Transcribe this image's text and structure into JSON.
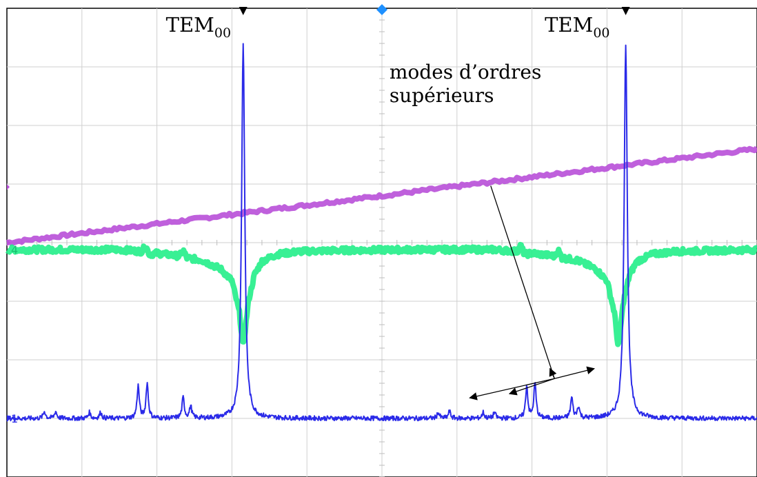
{
  "chart_data": {
    "type": "line",
    "xlim": [
      0,
      10
    ],
    "ylim": [
      0,
      8
    ],
    "grid": true,
    "grid_divisions": {
      "x": 10,
      "y": 8
    },
    "colors": {
      "ramp": "#b84fd8",
      "reflection": "#22ee88",
      "transmission": "#2a2ae8",
      "marker_trigger": "#1e90ff",
      "marker_peak": "#000000"
    },
    "channel_labels": {
      "transmission": "1",
      "reflection": "4"
    },
    "series": [
      {
        "channel": "ramp",
        "color": "#b84fd8",
        "x": [
          0,
          10
        ],
        "y": [
          4.0,
          5.6
        ]
      },
      {
        "channel": "reflection",
        "color": "#22ee88",
        "x": [
          0,
          1.5,
          1.8,
          1.85,
          1.9,
          2.0,
          2.3,
          2.35,
          2.4,
          2.6,
          2.85,
          3.0,
          3.1,
          3.15,
          3.22,
          3.3,
          3.4,
          3.6,
          3.9,
          4.5,
          5.5,
          6.5,
          6.8,
          6.85,
          6.9,
          7.0,
          7.3,
          7.35,
          7.4,
          7.6,
          7.85,
          8.0,
          8.1,
          8.15,
          8.22,
          8.3,
          8.4,
          8.6,
          8.9,
          10
        ],
        "y": [
          3.88,
          3.88,
          3.85,
          3.95,
          3.8,
          3.82,
          3.77,
          3.87,
          3.74,
          3.7,
          3.55,
          3.35,
          2.8,
          2.2,
          3.0,
          3.45,
          3.68,
          3.8,
          3.85,
          3.87,
          3.88,
          3.88,
          3.85,
          3.95,
          3.8,
          3.82,
          3.77,
          3.87,
          3.74,
          3.7,
          3.55,
          3.35,
          2.8,
          2.2,
          3.0,
          3.45,
          3.68,
          3.8,
          3.85,
          3.88
        ]
      },
      {
        "channel": "transmission",
        "color": "#2a2ae8",
        "peaks": [
          {
            "x": 0.5,
            "h": 0.12
          },
          {
            "x": 0.65,
            "h": 0.12
          },
          {
            "x": 1.1,
            "h": 0.1
          },
          {
            "x": 1.25,
            "h": 0.1
          },
          {
            "x": 1.75,
            "h": 0.55
          },
          {
            "x": 1.87,
            "h": 0.6
          },
          {
            "x": 2.35,
            "h": 0.35
          },
          {
            "x": 2.45,
            "h": 0.2
          },
          {
            "x": 3.15,
            "h": 6.4
          },
          {
            "x": 5.75,
            "h": 0.1
          },
          {
            "x": 5.9,
            "h": 0.12
          },
          {
            "x": 6.35,
            "h": 0.1
          },
          {
            "x": 6.5,
            "h": 0.1
          },
          {
            "x": 6.93,
            "h": 0.55
          },
          {
            "x": 7.04,
            "h": 0.6
          },
          {
            "x": 7.53,
            "h": 0.35
          },
          {
            "x": 7.62,
            "h": 0.2
          },
          {
            "x": 8.25,
            "h": 6.4
          }
        ],
        "baseline": 1.0
      }
    ],
    "annotations": [
      {
        "text": "TEM",
        "sub": "00",
        "x": 2.12,
        "y": 7.6
      },
      {
        "text": "TEM",
        "sub": "00",
        "x": 7.17,
        "y": 7.6
      },
      {
        "text": "modes d’ordres",
        "x": 5.1,
        "y": 6.8
      },
      {
        "text": "supérieurs",
        "x": 5.1,
        "y": 6.4
      }
    ],
    "arrow_source": {
      "x": 7.3,
      "y": 1.68
    },
    "arrow_targets": [
      {
        "x": 6.17,
        "y": 1.35
      },
      {
        "x": 6.7,
        "y": 1.42
      },
      {
        "x": 7.24,
        "y": 1.85
      },
      {
        "x": 7.83,
        "y": 1.85
      }
    ],
    "pointer_line": {
      "from": {
        "x": 6.45,
        "y": 4.97
      },
      "to": {
        "x": 7.3,
        "y": 1.68
      }
    },
    "top_markers": [
      {
        "kind": "peak",
        "x": 3.15
      },
      {
        "kind": "trigger",
        "x": 5.0
      },
      {
        "kind": "peak",
        "x": 8.25
      }
    ]
  }
}
